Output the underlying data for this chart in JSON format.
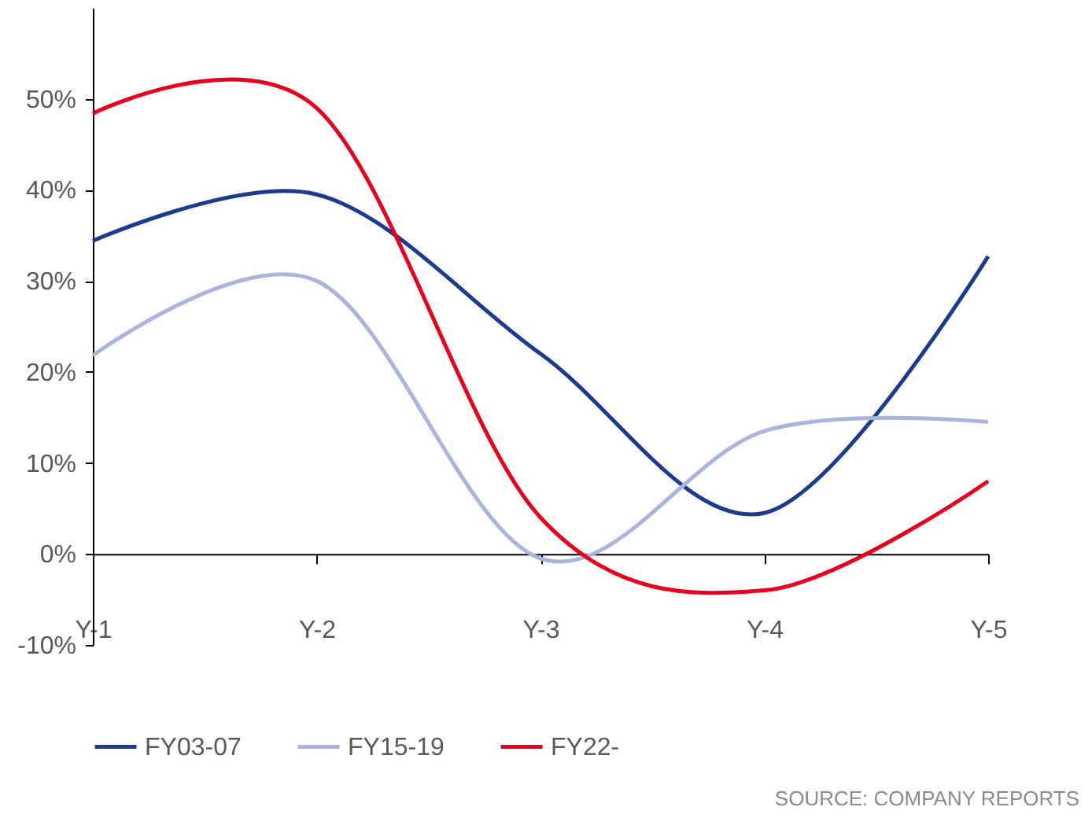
{
  "chart_data": {
    "type": "line",
    "categories": [
      "Y-1",
      "Y-2",
      "Y-3",
      "Y-4",
      "Y-5"
    ],
    "series": [
      {
        "name": "FY03-07",
        "color": "#1c3a8e",
        "values": [
          34.4,
          39.5,
          22,
          4.5,
          32.7
        ]
      },
      {
        "name": "FY15-19",
        "color": "#aab4dc",
        "values": [
          21.8,
          30,
          -0.5,
          13.5,
          14.5
        ]
      },
      {
        "name": "FY22-",
        "color": "#e8001c",
        "values": [
          48.4,
          49,
          4,
          -4,
          8
        ]
      }
    ],
    "ylim": [
      -10,
      60
    ],
    "yticks": [
      {
        "value": -10,
        "label": "-10%"
      },
      {
        "value": 0,
        "label": "0%"
      },
      {
        "value": 10,
        "label": "10%"
      },
      {
        "value": 20,
        "label": "20%"
      },
      {
        "value": 30,
        "label": "30%"
      },
      {
        "value": 40,
        "label": "40%"
      },
      {
        "value": 50,
        "label": "50%"
      }
    ],
    "grid": false,
    "legend": "bottom",
    "marker": "none",
    "line_style": "solid",
    "annotations": [
      "SOURCE: COMPANY REPORTS"
    ]
  }
}
